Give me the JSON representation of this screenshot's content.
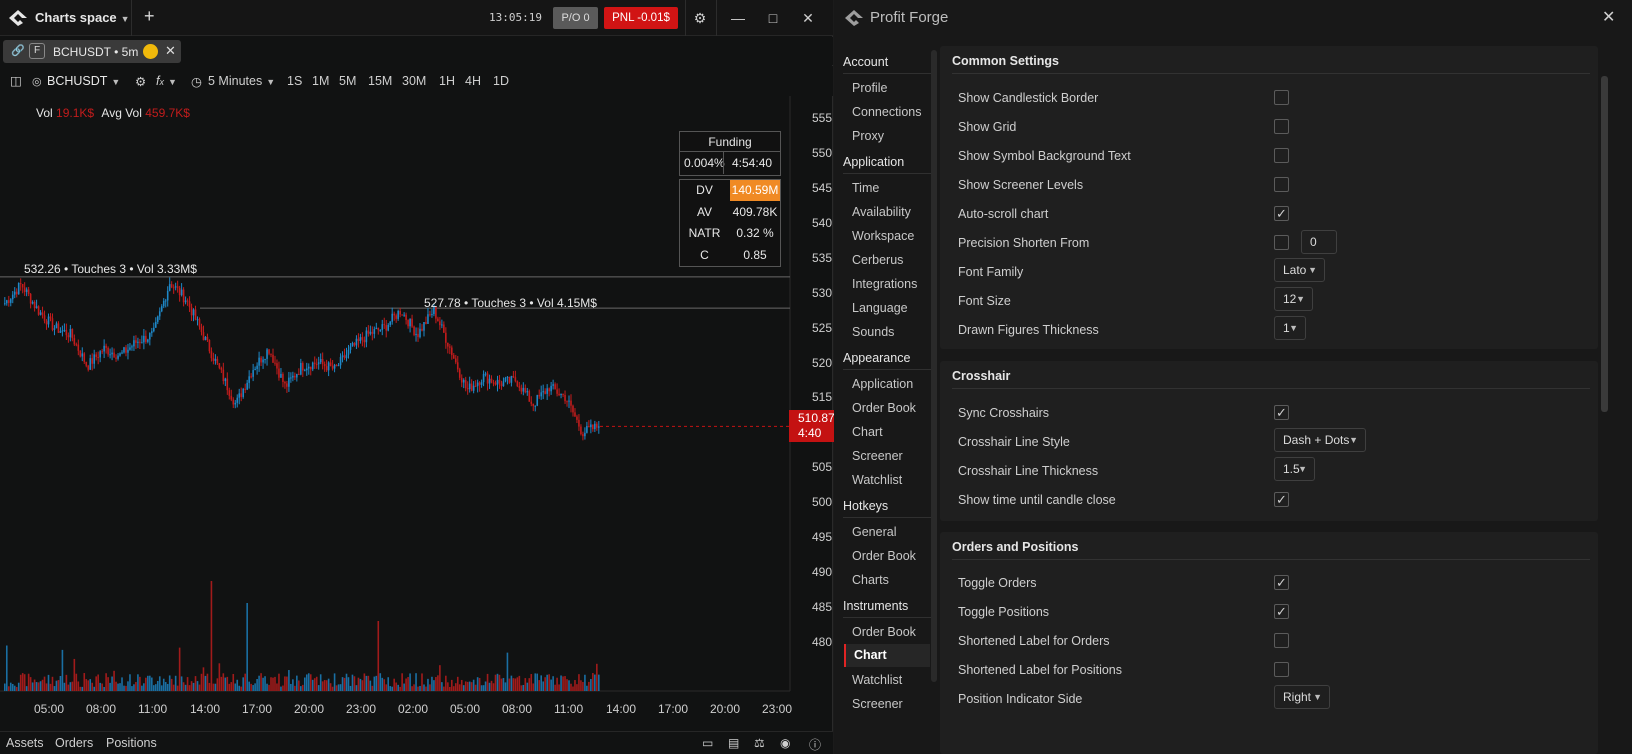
{
  "top": {
    "space_title": "Charts space",
    "clock": "13:05:19",
    "po_label": "P/O 0",
    "pnl_label": "PNL -0.01$"
  },
  "chart_tab": {
    "exchange_badge": "F",
    "label": "BCHUSDT • 5m"
  },
  "toolbar": {
    "symbol": "BCHUSDT",
    "interval": "5 Minutes",
    "timeframes": [
      "1S",
      "1M",
      "5M",
      "15M",
      "30M",
      "1H",
      "4H",
      "1D"
    ]
  },
  "legend": {
    "vol_label": "Vol",
    "vol_value": "19.1K$",
    "avgvol_label": "Avg Vol",
    "avgvol_value": "459.7K$"
  },
  "funding": {
    "title": "Funding",
    "rate": "0.004%",
    "countdown": "4:54:40"
  },
  "stats": [
    {
      "key": "DV",
      "value": "140.59M"
    },
    {
      "key": "AV",
      "value": "409.78K"
    },
    {
      "key": "NATR",
      "value": "0.32 %"
    },
    {
      "key": "C",
      "value": "0.85"
    }
  ],
  "levels": [
    {
      "text": "532.26 • Touches 3 • Vol 3.33M$"
    },
    {
      "text": "527.78 • Touches 3 • Vol 4.15M$"
    }
  ],
  "price_tag": {
    "price": "510.87",
    "countdown": "4:40"
  },
  "chart_data": {
    "type": "candlestick",
    "y_ticks": [
      "555",
      "550",
      "545",
      "540",
      "535",
      "530",
      "525",
      "520",
      "515",
      "510",
      "505",
      "500",
      "495",
      "490",
      "485",
      "480"
    ],
    "x_ticks": [
      "05:00",
      "08:00",
      "11:00",
      "14:00",
      "17:00",
      "20:00",
      "23:00",
      "02:00",
      "05:00",
      "08:00",
      "11:00",
      "14:00",
      "17:00",
      "20:00",
      "23:00"
    ],
    "ylim": [
      478,
      557
    ],
    "close_path": [
      {
        "t": "04:00",
        "v": 528.5
      },
      {
        "t": "05:00",
        "v": 531.2
      },
      {
        "t": "06:00",
        "v": 527.5
      },
      {
        "t": "07:00",
        "v": 525.0
      },
      {
        "t": "08:00",
        "v": 524.0
      },
      {
        "t": "09:00",
        "v": 519.5
      },
      {
        "t": "10:00",
        "v": 522.0
      },
      {
        "t": "11:00",
        "v": 521.0
      },
      {
        "t": "12:00",
        "v": 523.0
      },
      {
        "t": "13:00",
        "v": 524.0
      },
      {
        "t": "13:40",
        "v": 531.5
      },
      {
        "t": "14:30",
        "v": 529.0
      },
      {
        "t": "15:30",
        "v": 524.0
      },
      {
        "t": "16:30",
        "v": 519.0
      },
      {
        "t": "17:00",
        "v": 514.0
      },
      {
        "t": "18:00",
        "v": 519.0
      },
      {
        "t": "19:00",
        "v": 522.0
      },
      {
        "t": "20:00",
        "v": 516.5
      },
      {
        "t": "21:00",
        "v": 519.5
      },
      {
        "t": "22:00",
        "v": 520.0
      },
      {
        "t": "23:00",
        "v": 519.0
      },
      {
        "t": "00:00",
        "v": 522.0
      },
      {
        "t": "01:00",
        "v": 524.0
      },
      {
        "t": "02:00",
        "v": 525.0
      },
      {
        "t": "03:00",
        "v": 527.5
      },
      {
        "t": "04:00",
        "v": 524.0
      },
      {
        "t": "04:40",
        "v": 527.5
      },
      {
        "t": "05:30",
        "v": 522.0
      },
      {
        "t": "06:30",
        "v": 516.0
      },
      {
        "t": "07:30",
        "v": 518.0
      },
      {
        "t": "08:30",
        "v": 517.0
      },
      {
        "t": "09:00",
        "v": 517.5
      },
      {
        "t": "10:00",
        "v": 514.0
      },
      {
        "t": "11:00",
        "v": 516.5
      },
      {
        "t": "12:00",
        "v": 515.0
      },
      {
        "t": "12:40",
        "v": 510.0
      },
      {
        "t": "13:05",
        "v": 510.87
      }
    ],
    "levels": [
      532.26,
      527.78
    ],
    "last_price": 510.87
  },
  "bottom": {
    "tabs": [
      "Assets",
      "Orders",
      "Positions"
    ]
  },
  "settings": {
    "brand": "Profit Forge",
    "nav": [
      {
        "section": "Account",
        "items": [
          "Profile",
          "Connections",
          "Proxy"
        ]
      },
      {
        "section": "Application",
        "items": [
          "Time",
          "Availability",
          "Workspace",
          "Cerberus",
          "Integrations",
          "Language",
          "Sounds"
        ]
      },
      {
        "section": "Appearance",
        "items": [
          "Application",
          "Order Book",
          "Chart",
          "Screener",
          "Watchlist"
        ]
      },
      {
        "section": "Hotkeys",
        "items": [
          "General",
          "Order Book",
          "Charts"
        ]
      },
      {
        "section": "Instruments",
        "items": [
          "Order Book",
          "Chart",
          "Watchlist",
          "Screener"
        ]
      }
    ],
    "active_item": "Instruments › Chart",
    "common": {
      "title": "Common Settings",
      "show_candle_border": "Show Candlestick Border",
      "show_grid": "Show Grid",
      "show_symbol_bg": "Show Symbol Background Text",
      "show_screener_levels": "Show Screener Levels",
      "auto_scroll": "Auto-scroll chart",
      "precision_shorten": "Precision Shorten From",
      "precision_value": "0",
      "font_family_label": "Font Family",
      "font_family_value": "Lato",
      "font_size_label": "Font Size",
      "font_size_value": "12",
      "drawn_thickness_label": "Drawn Figures Thickness",
      "drawn_thickness_value": "1"
    },
    "crosshair": {
      "title": "Crosshair",
      "sync": "Sync Crosshairs",
      "line_style_label": "Crosshair Line Style",
      "line_style_value": "Dash + Dots",
      "line_thickness_label": "Crosshair Line Thickness",
      "line_thickness_value": "1.5",
      "show_time": "Show time until candle close"
    },
    "orders": {
      "title": "Orders and Positions",
      "toggle_orders": "Toggle Orders",
      "toggle_positions": "Toggle Positions",
      "short_orders": "Shortened Label for Orders",
      "short_positions": "Shortened Label for Positions",
      "indicator_side_label": "Position Indicator Side",
      "indicator_side_value": "Right"
    },
    "checked": {
      "show_candle_border": false,
      "show_grid": false,
      "show_symbol_bg": false,
      "show_screener_levels": false,
      "auto_scroll": true,
      "precision_shorten": false,
      "sync": true,
      "show_time": true,
      "toggle_orders": true,
      "toggle_positions": true,
      "short_orders": false,
      "short_positions": false
    }
  },
  "colors": {
    "accent_red": "#d11414",
    "up_candle": "#1e88c8",
    "down_candle": "#c41c1c",
    "highlight_orange": "#f08a24"
  }
}
